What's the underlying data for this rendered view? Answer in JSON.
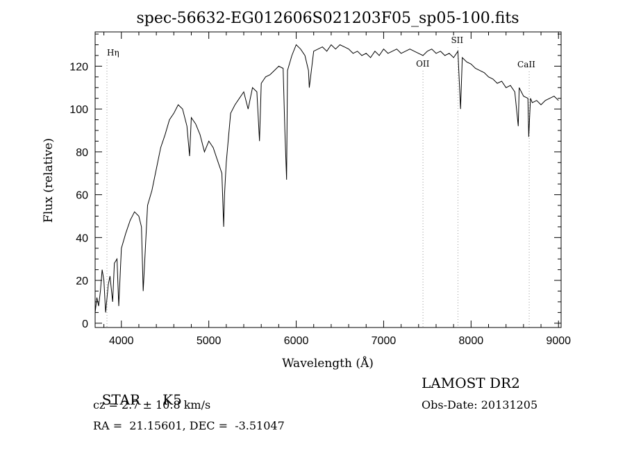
{
  "chart_data": {
    "type": "line",
    "title": "spec-56632-EG012606S021203F05_sp05-100.fits",
    "xlabel": "Wavelength (Å)",
    "ylabel": "Flux (relative)",
    "xlim": [
      3700,
      9030
    ],
    "ylim": [
      -2,
      136
    ],
    "x_ticks": [
      4000,
      5000,
      6000,
      7000,
      8000,
      9000
    ],
    "y_ticks": [
      0,
      20,
      40,
      60,
      80,
      100,
      120
    ],
    "grid": false,
    "line_color": "#000000",
    "marker_color": "#999999",
    "series": [
      {
        "x": [
          3700,
          3720,
          3740,
          3760,
          3780,
          3800,
          3820,
          3850,
          3870,
          3900,
          3920,
          3950,
          3970,
          4000,
          4050,
          4100,
          4150,
          4200,
          4230,
          4250,
          4300,
          4350,
          4400,
          4450,
          4500,
          4550,
          4600,
          4650,
          4700,
          4750,
          4780,
          4800,
          4850,
          4900,
          4950,
          5000,
          5050,
          5100,
          5150,
          5170,
          5180,
          5200,
          5250,
          5300,
          5350,
          5400,
          5450,
          5500,
          5550,
          5580,
          5600,
          5650,
          5700,
          5750,
          5800,
          5850,
          5870,
          5890,
          5900,
          5950,
          6000,
          6050,
          6100,
          6140,
          6150,
          6200,
          6250,
          6300,
          6350,
          6400,
          6450,
          6500,
          6550,
          6600,
          6650,
          6700,
          6750,
          6800,
          6850,
          6900,
          6950,
          7000,
          7050,
          7100,
          7150,
          7200,
          7250,
          7300,
          7350,
          7400,
          7450,
          7500,
          7550,
          7600,
          7650,
          7700,
          7750,
          7800,
          7850,
          7880,
          7900,
          7950,
          8000,
          8050,
          8100,
          8150,
          8200,
          8250,
          8300,
          8350,
          8400,
          8450,
          8500,
          8540,
          8550,
          8600,
          8650,
          8660,
          8680,
          8700,
          8750,
          8800,
          8850,
          8900,
          8950,
          9000
        ],
        "y": [
          5,
          12,
          8,
          15,
          25,
          20,
          5,
          18,
          22,
          10,
          28,
          30,
          8,
          35,
          42,
          48,
          52,
          50,
          45,
          15,
          55,
          62,
          72,
          82,
          88,
          95,
          98,
          102,
          100,
          92,
          78,
          96,
          93,
          88,
          80,
          85,
          82,
          76,
          70,
          45,
          60,
          75,
          98,
          102,
          105,
          108,
          100,
          110,
          108,
          85,
          112,
          115,
          116,
          118,
          120,
          119,
          90,
          67,
          118,
          125,
          130,
          128,
          125,
          118,
          110,
          127,
          128,
          129,
          127,
          130,
          128,
          130,
          129,
          128,
          126,
          127,
          125,
          126,
          124,
          127,
          125,
          128,
          126,
          127,
          128,
          126,
          127,
          128,
          127,
          126,
          125,
          127,
          128,
          126,
          127,
          125,
          126,
          124,
          127,
          100,
          124,
          122,
          121,
          119,
          118,
          117,
          115,
          114,
          112,
          113,
          110,
          111,
          108,
          92,
          110,
          106,
          105,
          87,
          105,
          103,
          104,
          102,
          104,
          105,
          106,
          104
        ]
      }
    ],
    "line_markers": [
      {
        "label": "Hη",
        "x": 3835
      },
      {
        "label": "OII",
        "x": 7450
      },
      {
        "label": "SII",
        "x": 7850
      },
      {
        "label": "CaII",
        "x": 8665
      }
    ]
  },
  "info": {
    "class": "STAR",
    "subclass": "K5",
    "cz": "cz = 2.7 ± 10.8 km/s",
    "coords": "RA =  21.15601, DEC =  -3.51047",
    "survey": "LAMOST DR2",
    "obs_date": "Obs-Date: 20131205"
  }
}
